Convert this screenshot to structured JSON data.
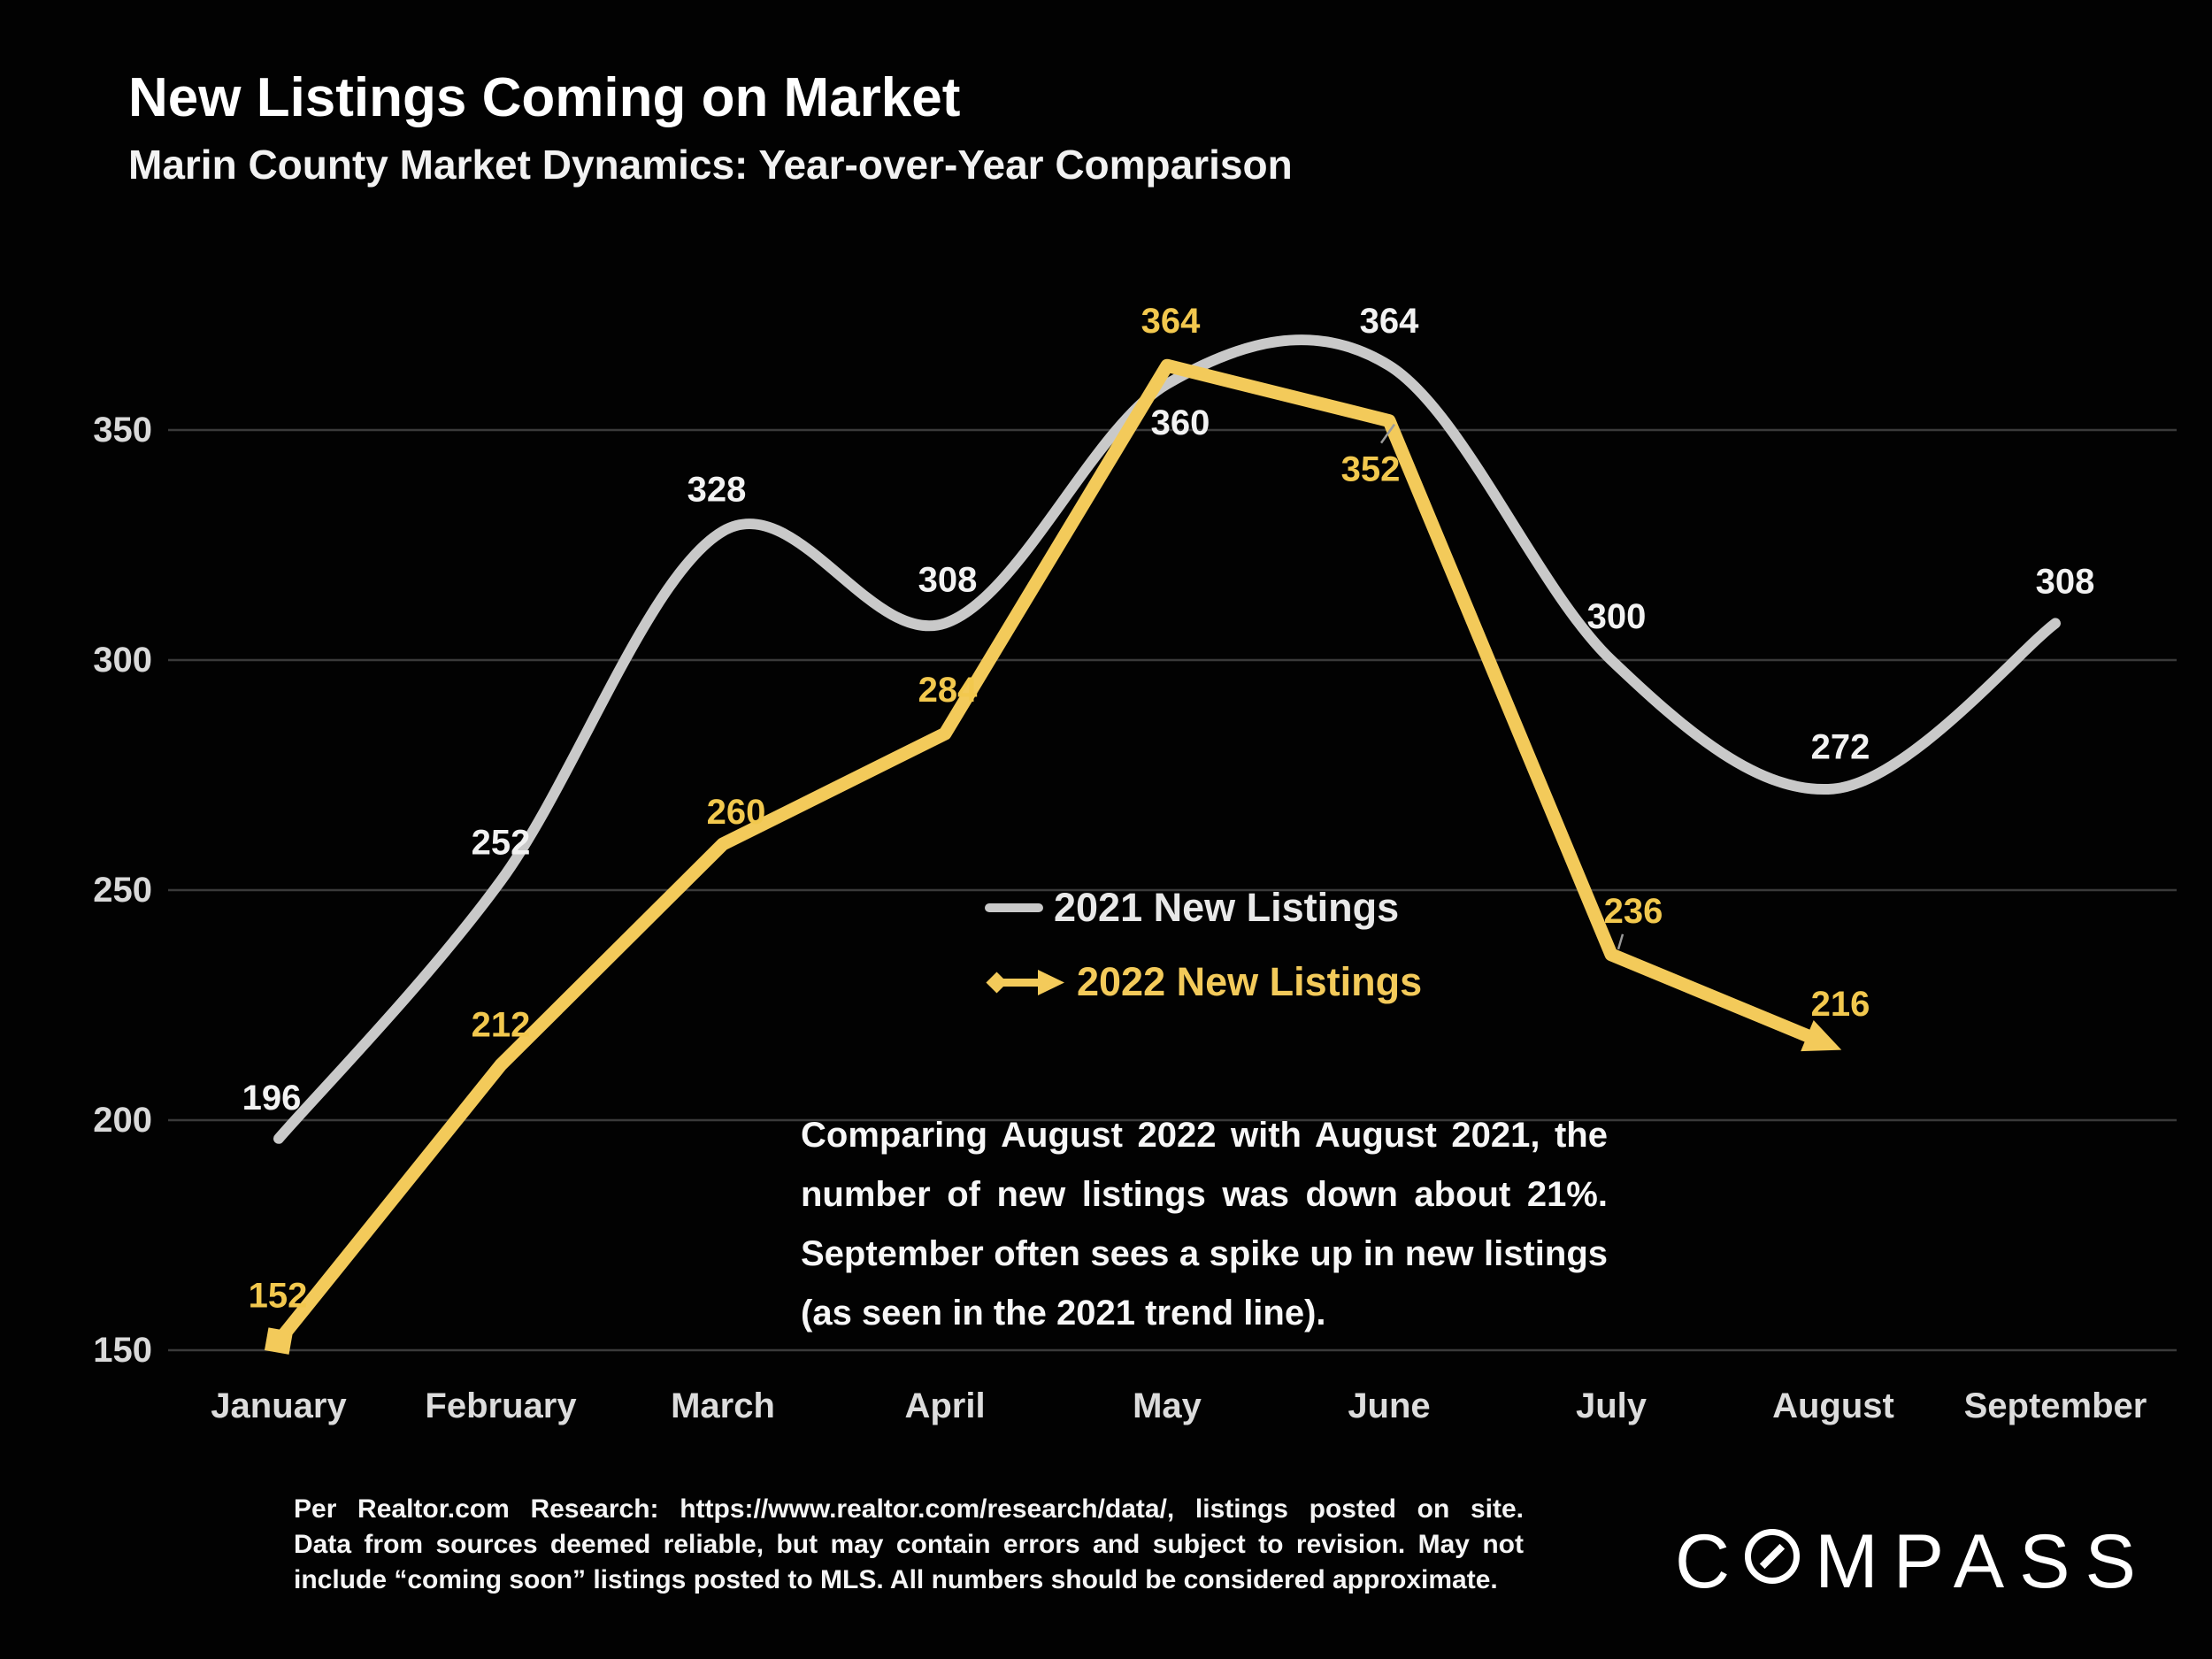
{
  "header": {
    "title": "New Listings Coming on Market",
    "subtitle": "Marin County Market Dynamics: Year-over-Year Comparison"
  },
  "chart_data": {
    "type": "line",
    "title": "New Listings Coming on Market",
    "subtitle": "Marin County Market Dynamics: Year-over-Year Comparison",
    "categories": [
      "January",
      "February",
      "March",
      "April",
      "May",
      "June",
      "July",
      "August",
      "September"
    ],
    "yticks": [
      150,
      200,
      250,
      300,
      350
    ],
    "ylim": [
      150,
      378
    ],
    "grid": true,
    "legend_position": "center",
    "gridline_color": "#3a3a3a",
    "leader_line_color": "#9a9a9a",
    "series": [
      {
        "name": "2021 New Listings",
        "type": "smooth",
        "color": "#c9c9c9",
        "label_color": "#f2f2f2",
        "values": [
          196,
          252,
          328,
          308,
          360,
          364,
          300,
          272,
          308
        ],
        "label_offsets": [
          [
            -8,
            -46
          ],
          [
            0,
            -43
          ],
          [
            -7,
            -47
          ],
          [
            3,
            -49
          ],
          [
            15,
            44
          ],
          [
            0,
            -50
          ],
          [
            6,
            -49
          ],
          [
            8,
            -47
          ],
          [
            11,
            -47
          ]
        ]
      },
      {
        "name": "2022 New Listings",
        "type": "straight",
        "color": "#f3ca5a",
        "label_color": "#f2c84e",
        "start_marker": "square",
        "end_marker": "arrow",
        "values": [
          152,
          212,
          260,
          284,
          364,
          352,
          236,
          216
        ],
        "label_offsets": [
          [
            -1,
            -51
          ],
          [
            0,
            -45
          ],
          [
            15,
            -36
          ],
          [
            3,
            -49
          ],
          [
            4,
            -50
          ],
          [
            -21,
            55
          ],
          [
            25,
            -49
          ],
          [
            8,
            -48
          ]
        ],
        "leader_lines": [
          {
            "index": 5,
            "from": [
              12,
              -30
            ],
            "to": [
              6,
              4
            ]
          },
          {
            "index": 6,
            "from": [
              -12,
              26
            ],
            "to": [
              8,
              -6
            ]
          }
        ]
      }
    ]
  },
  "legend": {
    "items": [
      {
        "label": "2021 New Listings",
        "marker": "line",
        "color": "#c9c9c9",
        "text_color": "#e8e8e8"
      },
      {
        "label": "2022 New Listings",
        "marker": "diamond-arrow",
        "color": "#f3ca5a",
        "text_color": "#f3ca5a"
      }
    ]
  },
  "annotation": {
    "lines": [
      "Comparing August 2022 with August 2021, the",
      "number of new listings was down about 21%.",
      "September often sees a spike up in new listings",
      "(as seen in the 2021 trend line)."
    ]
  },
  "footer": {
    "lines": [
      "Per Realtor.com Research:  https://www.realtor.com/research/data/, listings posted on site.",
      "Data from sources deemed reliable, but may contain errors and subject to revision. May not",
      "include “coming soon” listings posted to MLS. All numbers should be considered approximate."
    ]
  },
  "logo": {
    "part1": "C",
    "part2": "MPASS"
  }
}
